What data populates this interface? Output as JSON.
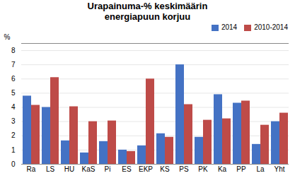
{
  "chart_data": {
    "type": "bar",
    "title": "Urapainuma-% keskimäärin\nenergiapuun korjuu",
    "categories": [
      "Ra",
      "LS",
      "HU",
      "KaS",
      "Pi",
      "ES",
      "EKP",
      "KS",
      "PS",
      "PK",
      "Ka",
      "PP",
      "La",
      "Yht"
    ],
    "series": [
      {
        "name": "2014",
        "color": "#4472C4",
        "values": [
          4.8,
          4.0,
          1.65,
          0.8,
          1.6,
          1.0,
          1.3,
          2.15,
          7.0,
          1.9,
          4.9,
          4.3,
          1.4,
          3.0
        ]
      },
      {
        "name": "2010-2014",
        "color": "#BE4B48",
        "values": [
          4.15,
          6.1,
          4.05,
          3.0,
          3.05,
          0.9,
          6.0,
          1.9,
          4.2,
          3.1,
          3.2,
          4.45,
          2.75,
          3.6
        ]
      }
    ],
    "ylabel": "%",
    "ylim": [
      0,
      8.5
    ],
    "yticks": [
      0,
      1,
      2,
      3,
      4,
      5,
      6,
      7,
      8
    ],
    "grid": true,
    "legend": "upper right"
  }
}
